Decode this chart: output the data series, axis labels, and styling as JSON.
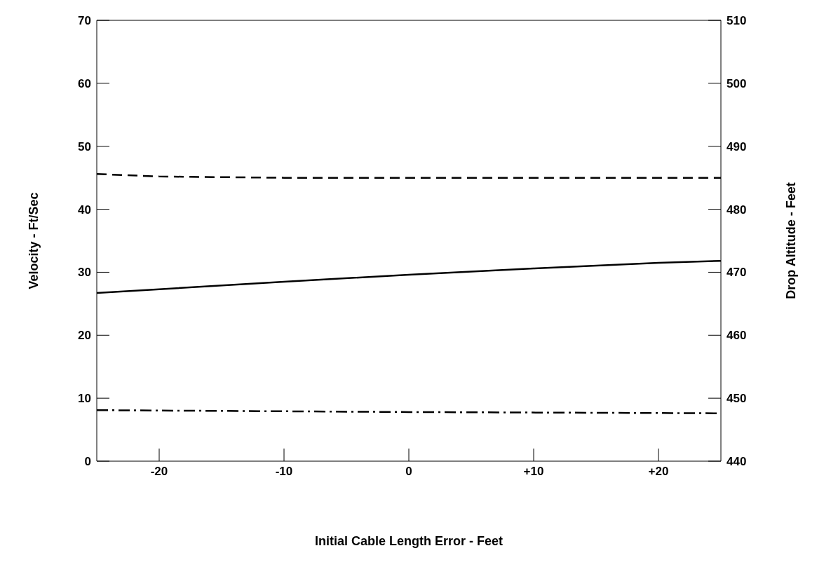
{
  "chart_data": {
    "type": "line",
    "xlabel": "Initial Cable Length Error - Feet",
    "ylabel": "Velocity - Ft/Sec",
    "y2label": "Drop Altitude - Feet",
    "xlim": [
      -25,
      25
    ],
    "xticks": [
      -20,
      -10,
      0,
      {
        "value": 10,
        "label": "+10"
      },
      {
        "value": 20,
        "label": "+20"
      }
    ],
    "ylim": [
      0,
      70
    ],
    "yticks": [
      0,
      10,
      20,
      30,
      40,
      50,
      60,
      70
    ],
    "y2lim": [
      440,
      510
    ],
    "y2ticks": [
      440,
      450,
      460,
      470,
      480,
      490,
      500,
      510
    ],
    "grid": false,
    "legend": false,
    "marker": "none",
    "series": [
      {
        "color": "#000000",
        "line_style": "dashed",
        "x": [
          -25,
          -20,
          -10,
          0,
          10,
          20,
          25
        ],
        "values": [
          45.6,
          45.2,
          45.0,
          45.0,
          45.0,
          45.0,
          45.0
        ]
      },
      {
        "color": "#000000",
        "line_style": "solid",
        "x": [
          -25,
          -20,
          -10,
          0,
          10,
          20,
          25
        ],
        "values": [
          26.7,
          27.3,
          28.5,
          29.6,
          30.6,
          31.5,
          31.8
        ]
      },
      {
        "color": "#000000",
        "line_style": "dashdot",
        "x": [
          -25,
          0,
          25
        ],
        "values": [
          8.1,
          7.8,
          7.6
        ]
      }
    ]
  }
}
